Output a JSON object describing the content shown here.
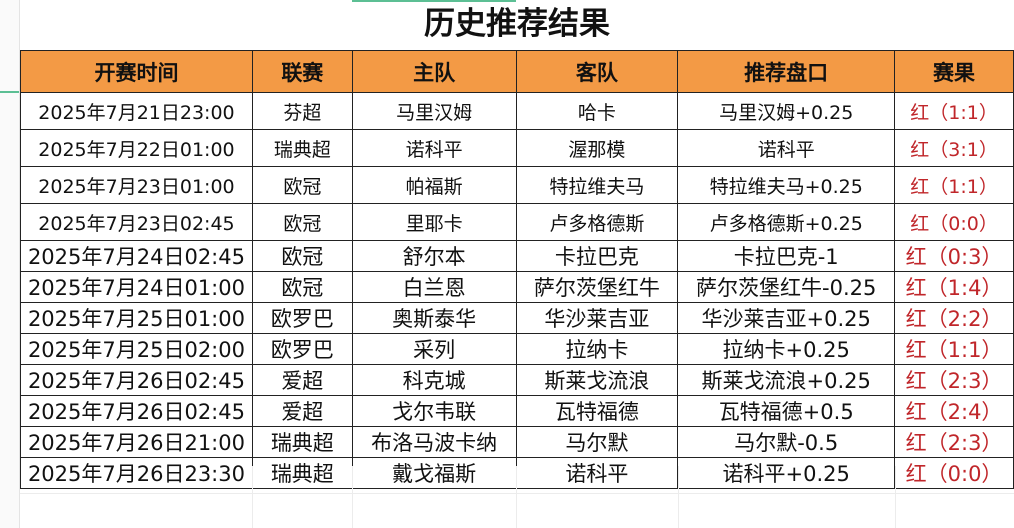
{
  "title": "历史推荐结果",
  "colors": {
    "header_bg": "#f39a45",
    "result_red": "#c0262a"
  },
  "headers": [
    "开赛时间",
    "联赛",
    "主队",
    "客队",
    "推荐盘口",
    "赛果"
  ],
  "rows": [
    [
      "2025年7月21日23:00",
      "芬超",
      "马里汉姆",
      "哈卡",
      "马里汉姆+0.25",
      "红（1:1）"
    ],
    [
      "2025年7月22日01:00",
      "瑞典超",
      "诺科平",
      "渥那模",
      "诺科平",
      "红（3:1）"
    ],
    [
      "2025年7月23日01:00",
      "欧冠",
      "帕福斯",
      "特拉维夫马",
      "特拉维夫马+0.25",
      "红（1:1）"
    ],
    [
      "2025年7月23日02:45",
      "欧冠",
      "里耶卡",
      "卢多格德斯",
      "卢多格德斯+0.25",
      "红（0:0）"
    ],
    [
      "2025年7月24日02:45",
      "欧冠",
      "舒尔本",
      "卡拉巴克",
      "卡拉巴克-1",
      "红（0:3）"
    ],
    [
      "2025年7月24日01:00",
      "欧冠",
      "白兰恩",
      "萨尔茨堡红牛",
      "萨尔茨堡红牛-0.25",
      "红（1:4）"
    ],
    [
      "2025年7月25日01:00",
      "欧罗巴",
      "奥斯泰华",
      "华沙莱吉亚",
      "华沙莱吉亚+0.25",
      "红（2:2）"
    ],
    [
      "2025年7月25日02:00",
      "欧罗巴",
      "采列",
      "拉纳卡",
      "拉纳卡+0.25",
      "红（1:1）"
    ],
    [
      "2025年7月26日02:45",
      "爱超",
      "科克城",
      "斯莱戈流浪",
      "斯莱戈流浪+0.25",
      "红（2:3）"
    ],
    [
      "2025年7月26日02:45",
      "爱超",
      "戈尔韦联",
      "瓦特福德",
      "瓦特福德+0.5",
      "红（2:4）"
    ],
    [
      "2025年7月26日21:00",
      "瑞典超",
      "布洛马波卡纳",
      "马尔默",
      "马尔默-0.5",
      "红（2:3）"
    ],
    [
      "2025年7月26日23:30",
      "瑞典超",
      "戴戈福斯",
      "诺科平",
      "诺科平+0.25",
      "红（0:0）"
    ]
  ]
}
